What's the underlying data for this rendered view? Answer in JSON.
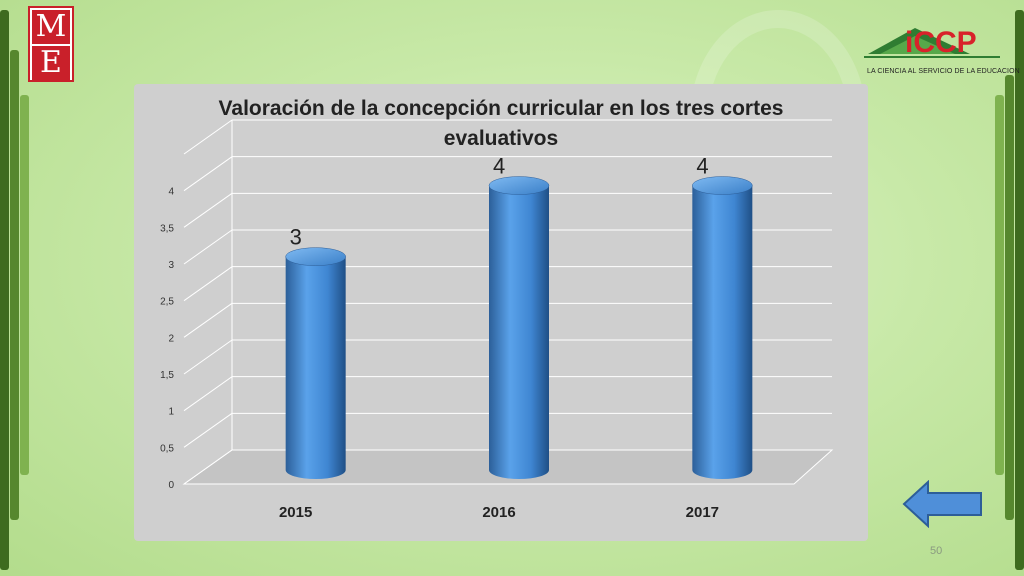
{
  "logos": {
    "left_letters": [
      "M",
      "E"
    ],
    "right_name": "iCCP",
    "right_tagline": "LA CIENCIA AL SERVICIO DE LA EDUCACION"
  },
  "chart_data": {
    "type": "bar",
    "title": "Valoración de la concepción curricular en los tres cortes evaluativos",
    "categories": [
      "2015",
      "2016",
      "2017"
    ],
    "values": [
      3,
      4,
      4
    ],
    "data_labels": [
      "3",
      "4",
      "4"
    ],
    "ylim": [
      0,
      4.5
    ],
    "yticks": [
      "0",
      "0,5",
      "1",
      "1,5",
      "2",
      "2,5",
      "3",
      "3,5",
      "4"
    ],
    "grid": true,
    "legend": "none",
    "bar_color": "#4a8fd8"
  },
  "navigation": {
    "back_arrow_icon": "left-arrow-icon",
    "page_number": "50"
  }
}
